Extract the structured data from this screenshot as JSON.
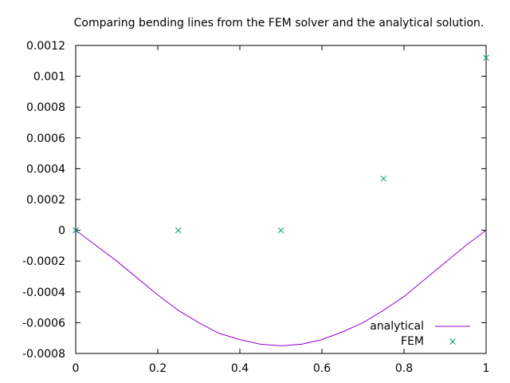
{
  "chart_data": {
    "type": "line",
    "title": "Comparing bending lines from the FEM solver and the analytical solution.",
    "xlabel": "",
    "ylabel": "",
    "xlim": [
      0,
      1
    ],
    "ylim": [
      -0.0008,
      0.0012
    ],
    "xticks": [
      0,
      0.2,
      0.4,
      0.6,
      0.8,
      1
    ],
    "xtick_labels": [
      "0",
      "0.2",
      "0.4",
      "0.6",
      "0.8",
      "1"
    ],
    "yticks": [
      -0.0008,
      -0.0006,
      -0.0004,
      -0.0002,
      0,
      0.0002,
      0.0004,
      0.0006,
      0.0008,
      0.001,
      0.0012
    ],
    "ytick_labels": [
      "-0.0008",
      "-0.0006",
      "-0.0004",
      "-0.0002",
      "0",
      "0.0002",
      "0.0004",
      "0.0006",
      "0.0008",
      "0.001",
      "0.0012"
    ],
    "grid": false,
    "legend_position": "bottom-right",
    "series": [
      {
        "name": "analytical",
        "style": "line",
        "color": "#9400d3",
        "x": [
          0,
          0.05,
          0.1,
          0.15,
          0.2,
          0.25,
          0.3,
          0.35,
          0.4,
          0.45,
          0.5,
          0.55,
          0.6,
          0.65,
          0.7,
          0.75,
          0.8,
          0.85,
          0.9,
          0.95,
          1
        ],
        "y": [
          0,
          -0.0001,
          -0.0002,
          -0.00031,
          -0.00042,
          -0.00052,
          -0.0006,
          -0.00067,
          -0.00071,
          -0.00074,
          -0.00075,
          -0.00074,
          -0.00071,
          -0.00066,
          -0.0006,
          -0.00052,
          -0.00043,
          -0.00032,
          -0.00021,
          -0.0001,
          0
        ]
      },
      {
        "name": "FEM",
        "style": "points",
        "marker": "x",
        "color": "#009e73",
        "x": [
          0,
          0.25,
          0.5,
          0.75,
          1
        ],
        "y": [
          0,
          0,
          0,
          0.000335,
          0.00112
        ]
      }
    ]
  }
}
